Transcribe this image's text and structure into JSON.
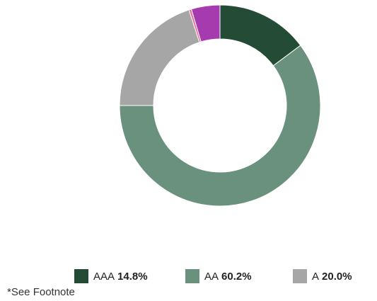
{
  "chart_data": {
    "type": "pie",
    "variant": "donut",
    "title": "",
    "slices": [
      {
        "label": "AAA",
        "value_label": "14.8%",
        "value": 14.8,
        "color": "#234b35",
        "in_legend": true
      },
      {
        "label": "AA",
        "value_label": "60.2%",
        "value": 60.2,
        "color": "#6a917e",
        "in_legend": true
      },
      {
        "label": "A",
        "value_label": "20.0%",
        "value": 20.0,
        "color": "#a6a6a6",
        "in_legend": true
      },
      {
        "label": "",
        "value_label": "",
        "value": 0.4,
        "color": "#e6739b",
        "in_legend": false
      },
      {
        "label": "",
        "value_label": "",
        "value": 4.6,
        "color": "#a63bb0",
        "in_legend": false
      }
    ],
    "legend_position": "bottom",
    "start_angle": "top, clockwise"
  },
  "footnote": "*See Footnote"
}
